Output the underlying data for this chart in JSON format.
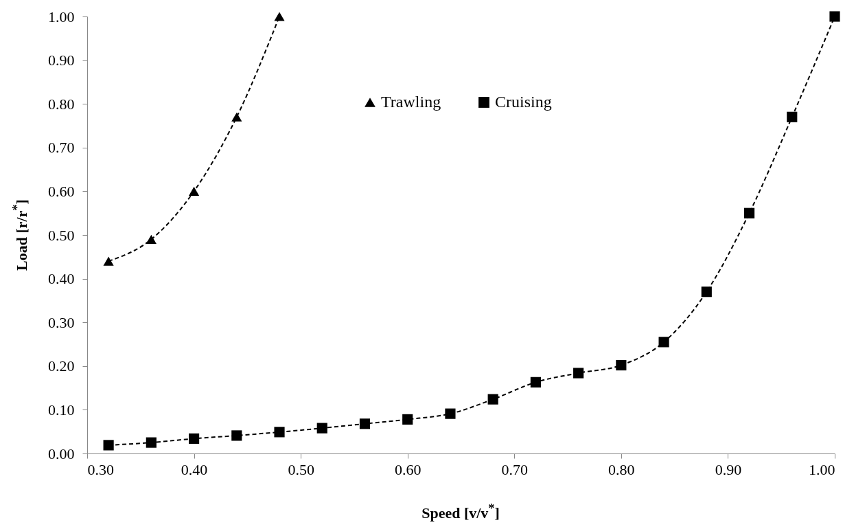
{
  "chart_data": {
    "type": "line",
    "xlabel": "Speed [v/v$^{*}$]",
    "ylabel": "Load [r/r$^{*}$]",
    "xlim": [
      0.3,
      1.0
    ],
    "ylim": [
      0,
      1.0
    ],
    "xticks": [
      {
        "value": 0.3,
        "label": "0.30"
      },
      {
        "value": 0.4,
        "label": "0.40"
      },
      {
        "value": 0.5,
        "label": "0.50"
      },
      {
        "value": 0.6,
        "label": "0.60"
      },
      {
        "value": 0.7,
        "label": "0.70"
      },
      {
        "value": 0.8,
        "label": "0.80"
      },
      {
        "value": 0.9,
        "label": "0.90"
      },
      {
        "value": 1.0,
        "label": "1.00"
      }
    ],
    "yticks": [
      {
        "value": 0,
        "label": "0.00"
      },
      {
        "value": 0.1,
        "label": "0.10"
      },
      {
        "value": 0.2,
        "label": "0.20"
      },
      {
        "value": 0.3,
        "label": "0.30"
      },
      {
        "value": 0.4,
        "label": "0.40"
      },
      {
        "value": 0.5,
        "label": "0.50"
      },
      {
        "value": 0.6,
        "label": "0.60"
      },
      {
        "value": 0.7,
        "label": "0.70"
      },
      {
        "value": 0.8,
        "label": "0.80"
      },
      {
        "value": 0.9,
        "label": "0.90"
      },
      {
        "value": 1.0,
        "label": "1.00"
      }
    ],
    "grid": false,
    "legend": "top",
    "line_style": "dashed",
    "series": [
      {
        "name": "Trawling",
        "color": "#000000",
        "marker": "triangle",
        "x": [
          0.32,
          0.36,
          0.4,
          0.44,
          0.48
        ],
        "values": [
          0.44,
          0.49,
          0.6,
          0.77,
          1.0
        ]
      },
      {
        "name": "Cruising",
        "color": "#000000",
        "marker": "square",
        "x": [
          0.32,
          0.36,
          0.4,
          0.44,
          0.48,
          0.52,
          0.56,
          0.6,
          0.64,
          0.68,
          0.72,
          0.76,
          0.8,
          0.84,
          0.88,
          0.92,
          0.96,
          1.0
        ],
        "values": [
          0.019,
          0.025,
          0.034,
          0.041,
          0.049,
          0.058,
          0.068,
          0.078,
          0.091,
          0.124,
          0.163,
          0.184,
          0.202,
          0.255,
          0.37,
          0.55,
          0.77,
          1.0
        ]
      }
    ]
  }
}
